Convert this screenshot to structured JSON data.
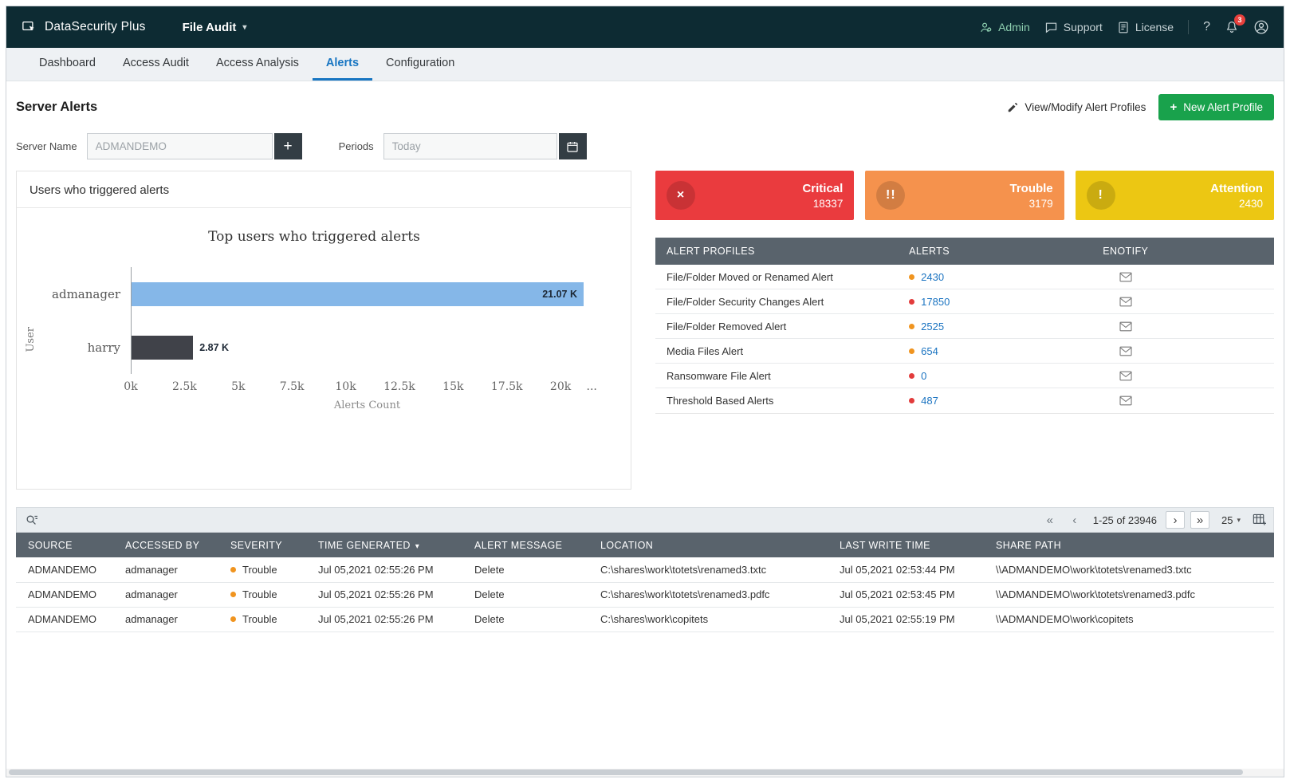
{
  "icons": {
    "plus": "+",
    "caret_down": "▾",
    "help": "?",
    "close": "×",
    "trouble_mark": "!!",
    "attention_mark": "!",
    "nav_first": "«",
    "nav_prev": "‹",
    "nav_next": "›",
    "nav_last": "»"
  },
  "topbar": {
    "brand": "DataSecurity Plus",
    "module": "File Audit",
    "admin": "Admin",
    "support": "Support",
    "license": "License",
    "notification_count": "3"
  },
  "tabs": [
    {
      "label": "Dashboard",
      "active": false
    },
    {
      "label": "Access Audit",
      "active": false
    },
    {
      "label": "Access Analysis",
      "active": false
    },
    {
      "label": "Alerts",
      "active": true
    },
    {
      "label": "Configuration",
      "active": false
    }
  ],
  "page": {
    "title": "Server Alerts",
    "view_modify_label": "View/Modify Alert Profiles",
    "new_profile_label": "New Alert Profile"
  },
  "filters": {
    "server_name_label": "Server Name",
    "server_name_value": "ADMANDEMO",
    "periods_label": "Periods",
    "periods_value": "Today"
  },
  "chart_card": {
    "title": "Users who triggered alerts"
  },
  "chart_data": {
    "type": "bar",
    "orientation": "horizontal",
    "title": "Top users who triggered alerts",
    "categories": [
      "admanager",
      "harry"
    ],
    "values": [
      21070,
      2870
    ],
    "value_labels": [
      "21.07 K",
      "2.87 K"
    ],
    "bar_colors": [
      "#85b7e8",
      "#404249"
    ],
    "xlabel": "Alerts Count",
    "ylabel": "User",
    "xlim": [
      0,
      22000
    ],
    "xticks": [
      "0k",
      "2.5k",
      "5k",
      "7.5k",
      "10k",
      "12.5k",
      "15k",
      "17.5k",
      "20k",
      "..."
    ],
    "legend": false,
    "grid": false
  },
  "summary_cards": [
    {
      "label": "Critical",
      "value": "18337",
      "bg": "#ea3b3e",
      "icon": "close"
    },
    {
      "label": "Trouble",
      "value": "3179",
      "bg": "#f5924d",
      "icon": "trouble_mark"
    },
    {
      "label": "Attention",
      "value": "2430",
      "bg": "#ecc713",
      "icon": "attention_mark"
    }
  ],
  "profiles_table": {
    "headers": [
      "ALERT PROFILES",
      "ALERTS",
      "ENOTIFY"
    ],
    "rows": [
      {
        "name": "File/Folder Moved or Renamed Alert",
        "count": "2430",
        "dot": "orange"
      },
      {
        "name": "File/Folder Security Changes Alert",
        "count": "17850",
        "dot": "red"
      },
      {
        "name": "File/Folder Removed Alert",
        "count": "2525",
        "dot": "orange"
      },
      {
        "name": "Media Files Alert",
        "count": "654",
        "dot": "orange"
      },
      {
        "name": "Ransomware File Alert",
        "count": "0",
        "dot": "red"
      },
      {
        "name": "Threshold Based Alerts",
        "count": "487",
        "dot": "red"
      }
    ]
  },
  "alerts_table": {
    "pagination": {
      "range": "1-25 of 23946",
      "page_size": "25"
    },
    "headers": [
      "SOURCE",
      "ACCESSED BY",
      "SEVERITY",
      "TIME GENERATED",
      "ALERT MESSAGE",
      "LOCATION",
      "LAST WRITE TIME",
      "SHARE PATH"
    ],
    "rows": [
      {
        "source": "ADMANDEMO",
        "accessed_by": "admanager",
        "severity": "Trouble",
        "dot": "orange",
        "time_generated": "Jul 05,2021 02:55:26 PM",
        "alert_message": "Delete",
        "location": "C:\\shares\\work\\totets\\renamed3.txtc",
        "last_write_time": "Jul 05,2021 02:53:44 PM",
        "share_path": "\\\\ADMANDEMO\\work\\totets\\renamed3.txtc"
      },
      {
        "source": "ADMANDEMO",
        "accessed_by": "admanager",
        "severity": "Trouble",
        "dot": "orange",
        "time_generated": "Jul 05,2021 02:55:26 PM",
        "alert_message": "Delete",
        "location": "C:\\shares\\work\\totets\\renamed3.pdfc",
        "last_write_time": "Jul 05,2021 02:53:45 PM",
        "share_path": "\\\\ADMANDEMO\\work\\totets\\renamed3.pdfc"
      },
      {
        "source": "ADMANDEMO",
        "accessed_by": "admanager",
        "severity": "Trouble",
        "dot": "orange",
        "time_generated": "Jul 05,2021 02:55:26 PM",
        "alert_message": "Delete",
        "location": "C:\\shares\\work\\copitets",
        "last_write_time": "Jul 05,2021 02:55:19 PM",
        "share_path": "\\\\ADMANDEMO\\work\\copitets"
      }
    ]
  }
}
